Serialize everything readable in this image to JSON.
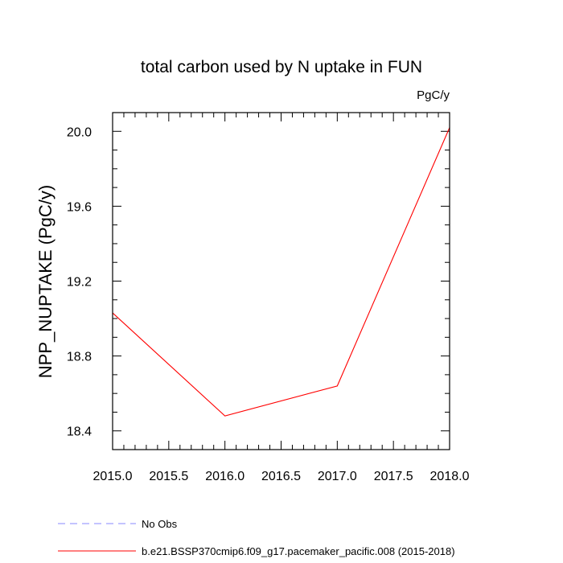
{
  "chart_data": {
    "type": "line",
    "title": "total carbon used by N uptake in FUN",
    "units": "PgC/y",
    "xlabel": "",
    "ylabel": "NPP_NUPTAKE  (PgC/y)",
    "xlim": [
      2015.0,
      2018.0
    ],
    "ylim": [
      18.3,
      20.1
    ],
    "xticks": [
      2015.0,
      2015.5,
      2016.0,
      2016.5,
      2017.0,
      2017.5,
      2018.0
    ],
    "xtick_labels": [
      "2015.0",
      "2015.5",
      "2016.0",
      "2016.5",
      "2017.0",
      "2017.5",
      "2018.0"
    ],
    "yticks": [
      18.4,
      18.8,
      19.2,
      19.6,
      20.0
    ],
    "ytick_labels": [
      "18.4",
      "18.8",
      "19.2",
      "19.6",
      "20.0"
    ],
    "grid": false,
    "legend_placement": "bottom",
    "series": [
      {
        "name": "b.e21.BSSP370cmip6.f09_g17.pacemaker_pacific.008 (2015-2018)",
        "color": "#ff0000",
        "style": "solid",
        "x": [
          2015,
          2016,
          2017,
          2018
        ],
        "values": [
          19.03,
          18.48,
          18.64,
          20.02
        ]
      }
    ],
    "legend": [
      {
        "label": "No Obs",
        "color": "#8a8aff",
        "style": "dashed"
      },
      {
        "label": "b.e21.BSSP370cmip6.f09_g17.pacemaker_pacific.008 (2015-2018)",
        "color": "#ff0000",
        "style": "solid"
      }
    ]
  }
}
